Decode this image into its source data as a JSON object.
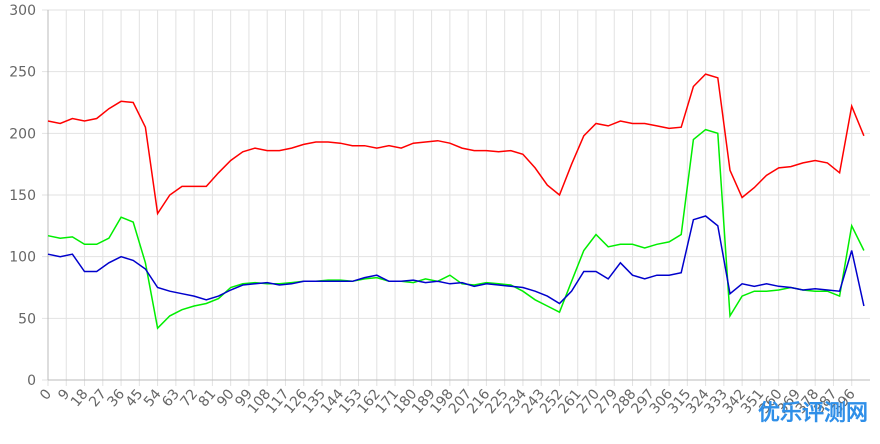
{
  "chart_data": {
    "type": "line",
    "x": [
      0,
      6,
      12,
      18,
      24,
      30,
      36,
      42,
      48,
      54,
      60,
      66,
      72,
      78,
      84,
      90,
      96,
      102,
      108,
      114,
      120,
      126,
      132,
      138,
      144,
      150,
      156,
      162,
      168,
      174,
      180,
      186,
      192,
      198,
      204,
      210,
      216,
      222,
      228,
      234,
      240,
      246,
      252,
      258,
      264,
      270,
      276,
      282,
      288,
      294,
      300,
      306,
      312,
      318,
      324,
      330,
      336,
      342,
      348,
      354,
      360,
      366,
      372,
      378,
      384,
      390,
      396,
      402
    ],
    "series": [
      {
        "color": "#ff0000",
        "values": [
          210,
          208,
          212,
          210,
          212,
          220,
          226,
          225,
          205,
          135,
          150,
          157,
          157,
          157,
          168,
          178,
          185,
          188,
          186,
          186,
          188,
          191,
          193,
          193,
          192,
          190,
          190,
          188,
          190,
          188,
          192,
          193,
          194,
          192,
          188,
          186,
          186,
          185,
          186,
          183,
          172,
          158,
          150,
          175,
          198,
          208,
          206,
          210,
          208,
          208,
          206,
          204,
          205,
          238,
          248,
          245,
          170,
          148,
          156,
          166,
          172,
          173,
          176,
          178,
          176,
          168,
          222,
          198
        ]
      },
      {
        "color": "#00ee00",
        "values": [
          117,
          115,
          116,
          110,
          110,
          115,
          132,
          128,
          95,
          42,
          52,
          57,
          60,
          62,
          66,
          75,
          78,
          79,
          78,
          78,
          79,
          80,
          80,
          81,
          81,
          80,
          82,
          83,
          80,
          80,
          79,
          82,
          80,
          85,
          78,
          77,
          79,
          78,
          77,
          72,
          65,
          60,
          55,
          80,
          105,
          118,
          108,
          110,
          110,
          107,
          110,
          112,
          118,
          195,
          203,
          200,
          52,
          68,
          72,
          72,
          73,
          75,
          73,
          72,
          72,
          68,
          125,
          105
        ]
      },
      {
        "color": "#0000cc",
        "values": [
          102,
          100,
          102,
          88,
          88,
          95,
          100,
          97,
          90,
          75,
          72,
          70,
          68,
          65,
          68,
          73,
          77,
          78,
          79,
          77,
          78,
          80,
          80,
          80,
          80,
          80,
          83,
          85,
          80,
          80,
          81,
          79,
          80,
          78,
          79,
          76,
          78,
          77,
          76,
          75,
          72,
          68,
          62,
          72,
          88,
          88,
          82,
          95,
          85,
          82,
          85,
          85,
          87,
          130,
          133,
          125,
          70,
          78,
          76,
          78,
          76,
          75,
          73,
          74,
          73,
          72,
          105,
          60
        ]
      }
    ],
    "xlim": [
      0,
      405
    ],
    "xticks": [
      0,
      9,
      18,
      27,
      36,
      45,
      54,
      63,
      72,
      81,
      90,
      99,
      108,
      117,
      126,
      135,
      144,
      153,
      162,
      171,
      180,
      189,
      198,
      207,
      216,
      225,
      234,
      243,
      252,
      261,
      270,
      279,
      288,
      297,
      306,
      315,
      324,
      333,
      342,
      351,
      360,
      369,
      378,
      387,
      396
    ],
    "ylim": [
      0,
      300
    ],
    "yticks": [
      0,
      50,
      100,
      150,
      200,
      250,
      300
    ],
    "grid": true,
    "watermark": "优乐评测网"
  }
}
